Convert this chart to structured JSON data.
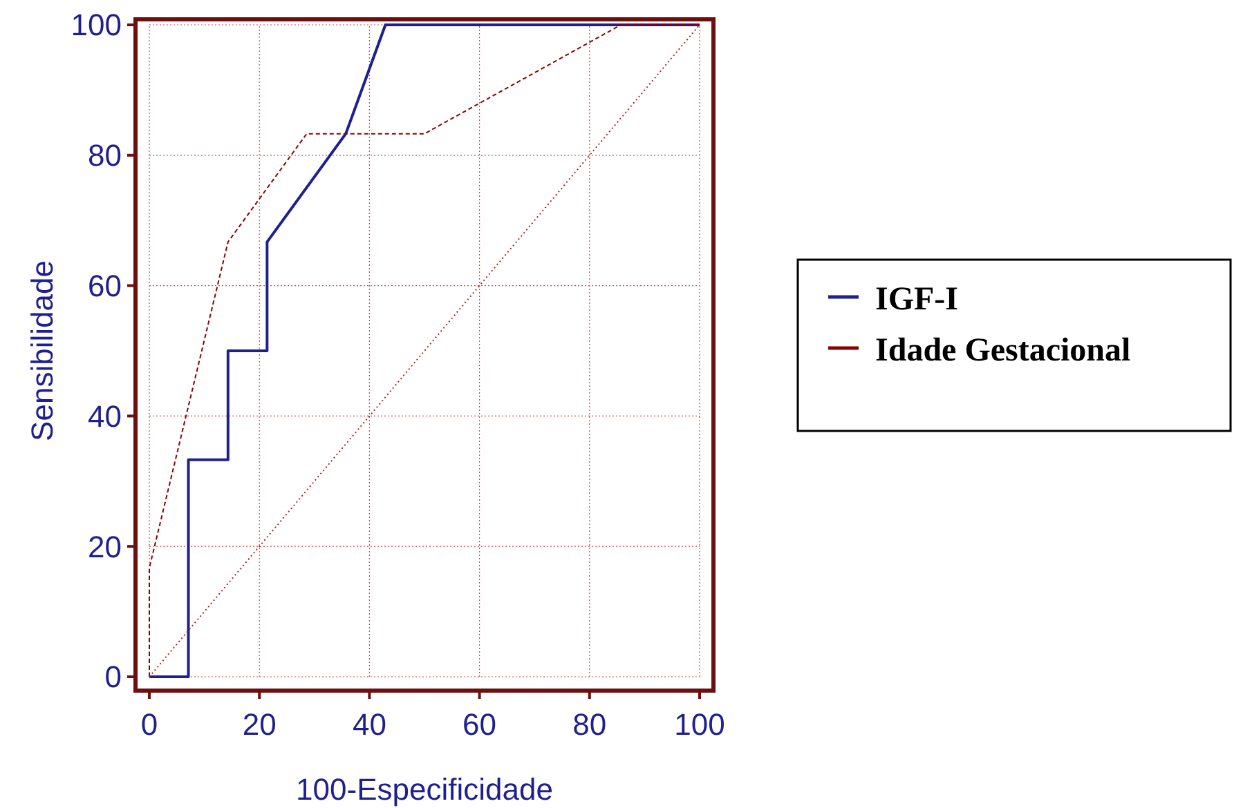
{
  "chart_data": {
    "type": "line",
    "xlabel": "100-Especificidade",
    "ylabel": "Sensibilidade",
    "xlim": [
      0,
      100
    ],
    "ylim": [
      0,
      100
    ],
    "xticks": [
      0,
      20,
      40,
      60,
      80,
      100
    ],
    "yticks": [
      0,
      20,
      40,
      60,
      80,
      100
    ],
    "grid": true,
    "legend": "right",
    "series": [
      {
        "name": "IGF-I",
        "color": "#1f1f8f",
        "line_style": "solid",
        "x": [
          0,
          7.1,
          7.1,
          14.3,
          14.3,
          21.4,
          21.4,
          35.7,
          42.9,
          100
        ],
        "values": [
          0,
          0,
          33.3,
          33.3,
          50,
          50,
          66.7,
          83.3,
          100,
          100
        ]
      },
      {
        "name": "Idade Gestacional",
        "color": "#8b0000",
        "line_style": "dashed",
        "x": [
          0,
          0,
          14.3,
          28.6,
          50,
          85.7,
          100
        ],
        "values": [
          0,
          16.7,
          66.7,
          83.3,
          83.3,
          100,
          100
        ]
      },
      {
        "color": "#b22222",
        "line_style": "dotted",
        "x": [
          0,
          100
        ],
        "values": [
          0,
          100
        ]
      }
    ]
  }
}
